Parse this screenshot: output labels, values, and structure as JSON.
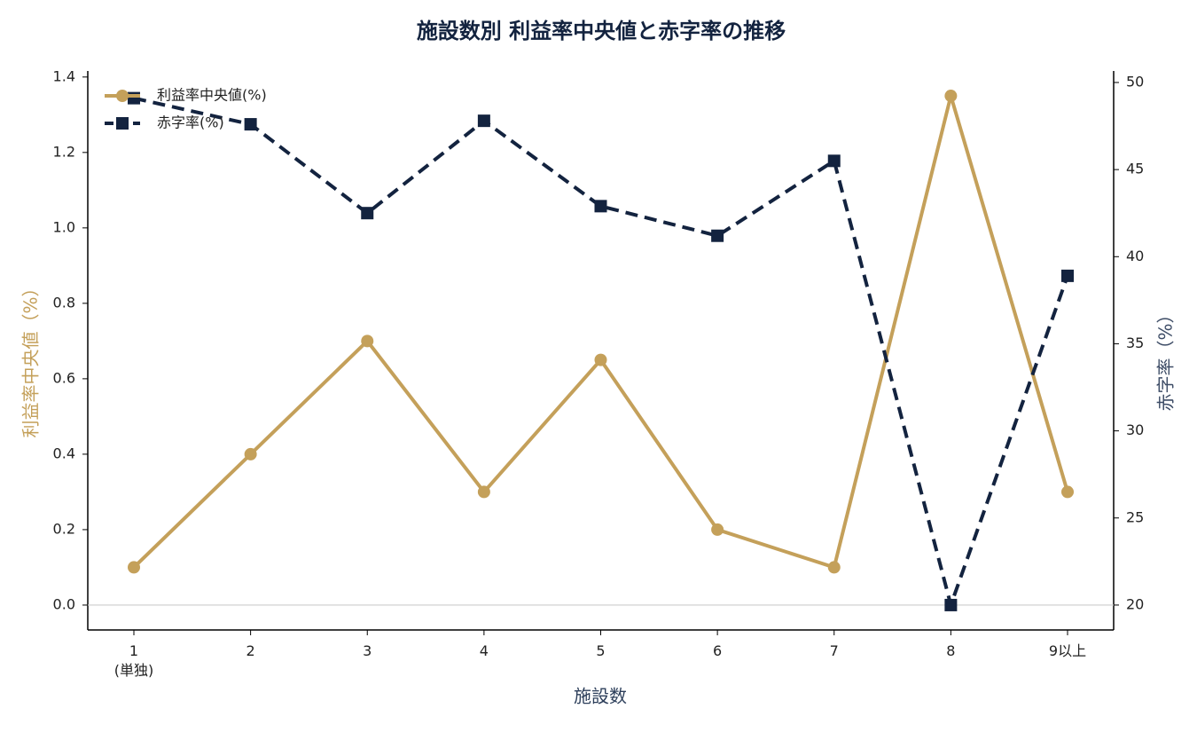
{
  "chart_data": {
    "type": "line",
    "title": "施設数別 利益率中央値と赤字率の推移",
    "x_label": "施設数",
    "y_label": "利益率中央値（%）",
    "y2_label": "赤字率（%）",
    "categories": [
      "1\n(単独)",
      "2",
      "3",
      "4",
      "5",
      "6",
      "7",
      "8",
      "9以上"
    ],
    "series": [
      {
        "name": "利益率中央値(%)",
        "color": "#c4a05a",
        "marker": "circle",
        "dash": false,
        "values": [
          0.1,
          0.4,
          0.7,
          0.3,
          0.65,
          0.2,
          0.1,
          1.35,
          0.3
        ]
      },
      {
        "name": "赤字率(%)",
        "color": "#13233f",
        "marker": "square",
        "dash": true,
        "axis": "y2",
        "values": [
          49.1,
          47.6,
          42.5,
          47.8,
          42.9,
          41.2,
          45.5,
          20.0,
          38.9
        ]
      }
    ],
    "ylim": [
      -0.066,
      1.416
    ],
    "yticks": [
      {
        "value": 0,
        "label": "0.0"
      },
      0.2,
      0.4,
      0.6,
      0.8,
      {
        "value": 1,
        "label": "1.0"
      },
      1.2,
      1.4
    ],
    "y2lim": [
      18.57,
      50.66
    ],
    "y2ticks": [
      20,
      25,
      30,
      35,
      40,
      45,
      50
    ],
    "reference_line": 0,
    "legend": "upper-left"
  }
}
